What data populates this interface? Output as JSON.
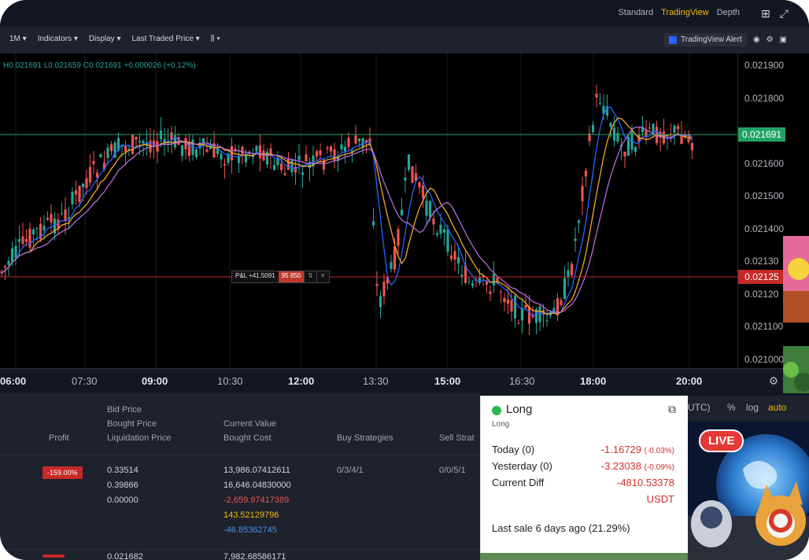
{
  "topbar": {
    "tabs": [
      "Standard",
      "TradingView",
      "Depth"
    ],
    "active_tab": "TradingView"
  },
  "toolbar": {
    "interval": "1M",
    "indicators": "Indicators",
    "display": "Display",
    "price_type": "Last Traded Price",
    "alert_label": "TradingView Alert"
  },
  "chart": {
    "ohlc": "H0.021691  L0.021659  C0.021691  +0.000026 (+0.12%)",
    "last_price": "0.021691",
    "order_price": "0.02125",
    "pnl_label": "P&L +41.5091",
    "pnl_qty": "95 850",
    "y_ticks": [
      "0.021900",
      "0.021800",
      "0.021600",
      "0.021500",
      "0.021400",
      "0.02130",
      "0.02120",
      "0.021100",
      "0.021000"
    ],
    "x_ticks": [
      "06:00",
      "07:30",
      "09:00",
      "10:30",
      "12:00",
      "13:30",
      "15:00",
      "16:30",
      "18:00",
      "20:00"
    ],
    "colors": {
      "up": "#26a69a",
      "down": "#ef5350",
      "ma_fast": "#2962ff",
      "ma_mid": "#f5a623",
      "ma_slow": "#b36bd4",
      "last_price": "#21a366",
      "order_line": "#c62828"
    }
  },
  "table": {
    "headers": {
      "profit": "Profit",
      "prices": [
        "Bid Price",
        "Bought Price",
        "Liquidation Price"
      ],
      "values": [
        "Current Value",
        "Bought Cost"
      ],
      "buy": "Buy Strategies",
      "sell": "Sell Strat"
    },
    "rows": [
      {
        "profit": "-159.00%",
        "prices": [
          "0.33514",
          "0.39866",
          "0.00000"
        ],
        "values": [
          "13,986.07412611",
          "16,646.04830000",
          "-2,659.97417389",
          "143.52129796",
          "-46.85362745"
        ],
        "buy": "0/3/4/1",
        "sell": "0/0/5/1"
      },
      {
        "profit": "",
        "prices": [
          "0.021682"
        ],
        "values": [
          "7,982.68586171"
        ]
      }
    ]
  },
  "popup": {
    "title": "Long",
    "subtitle": "Long",
    "rows": [
      {
        "label": "Today (0)",
        "value": "-1.16729",
        "pct": "(-0.03%)"
      },
      {
        "label": "Yesterday (0)",
        "value": "-3.23038",
        "pct": "(-0.09%)"
      },
      {
        "label": "Current Diff",
        "value": "-4810.53378",
        "pct": ""
      }
    ],
    "unit": "USDT",
    "last_sale": "Last sale 6 days ago (21.29%)"
  },
  "right_panel": {
    "labels": [
      "UTC)",
      "%",
      "log",
      "auto"
    ],
    "live_badge": "LIVE"
  }
}
